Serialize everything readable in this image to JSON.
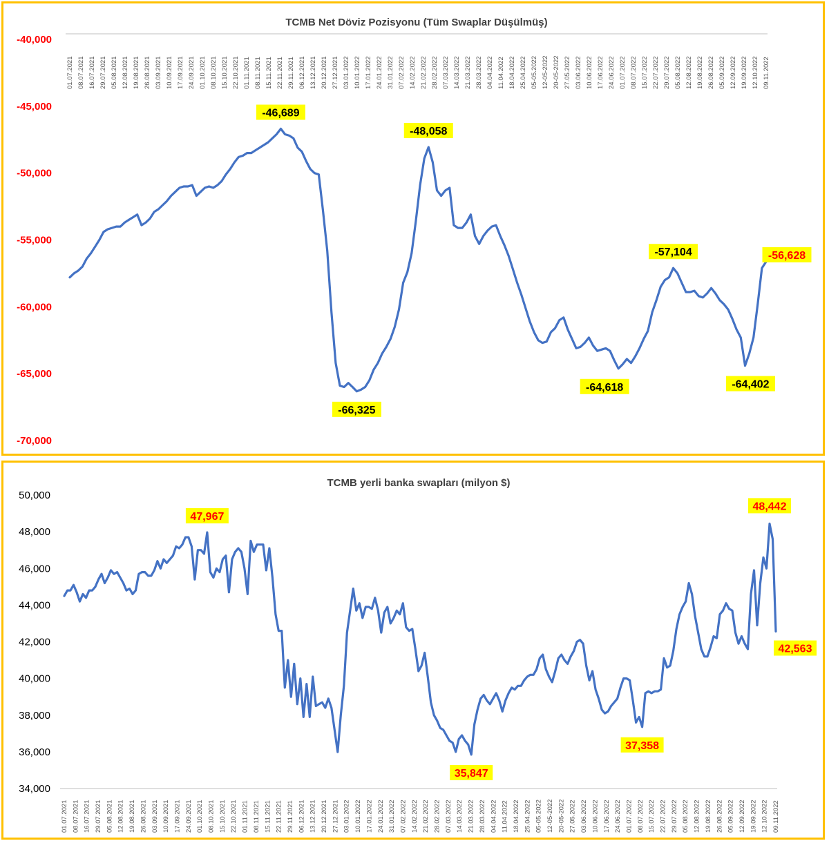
{
  "chart_data": [
    {
      "type": "line",
      "title": "TCMB Net Döviz Pozisyonu (Tüm Swaplar Düşülmüş)",
      "xlabel": "",
      "ylabel": "",
      "ylim": [
        -70000,
        -40000
      ],
      "y_axis_position": "top",
      "y_ticks": [
        -40000,
        -45000,
        -50000,
        -55000,
        -60000,
        -65000,
        -70000
      ],
      "y_tick_labels": [
        "-40,000",
        "-45,000",
        "-50,000",
        "-55,000",
        "-60,000",
        "-65,000",
        "-70,000"
      ],
      "y_tick_label_color": "#FF0000",
      "x_tick_labels": [
        "01.07.2021",
        "08.07.2021",
        "16.07.2021",
        "29.07.2021",
        "05.08.2021",
        "12.08.2021",
        "19.08.2021",
        "26.08.2021",
        "03.09.2021",
        "10.09.2021",
        "17.09.2021",
        "24.09.2021",
        "01.10.2021",
        "08.10.2021",
        "15.10.2021",
        "22.10.2021",
        "01.11.2021",
        "08.11.2021",
        "15.11.2021",
        "22.11.2021",
        "29.11.2021",
        "06.12.2021",
        "13.12.2021",
        "20.12.2021",
        "27.12.2021",
        "03.01.2022",
        "10.01.2022",
        "17.01.2022",
        "24.01.2022",
        "31.01.2022",
        "07.02.2022",
        "14.02.2022",
        "21.02.2022",
        "28.02.2022",
        "07.03.2022",
        "14.03.2022",
        "21.03.2022",
        "28.03.2022",
        "04.04.2022",
        "11.04.2022",
        "18.04.2022",
        "25.04.2022",
        "05-05.2022",
        "12-05-2022",
        "20-05-2022",
        "27.05.2022",
        "03.06.2022",
        "10.06.2022",
        "17.06.2022",
        "24.06.2022",
        "01.07.2022",
        "08.07.2022",
        "15.07.2022",
        "22.07.2022",
        "29.07.2022",
        "05.08.2022",
        "12.08.2022",
        "19.08.2022",
        "26.08.2022",
        "05.09.2022",
        "12.09.2022",
        "19.09.2022",
        "12.10.2022",
        "09.11.2022"
      ],
      "line_color": "#4472C4",
      "series": [
        {
          "values": [
            -57800,
            -57500,
            -57300,
            -57000,
            -56400,
            -56000,
            -55500,
            -55000,
            -54400,
            -54200,
            -54100,
            -54000,
            -54000,
            -53700,
            -53500,
            -53300,
            -53100,
            -53900,
            -53700,
            -53400,
            -52900,
            -52700,
            -52400,
            -52100,
            -51700,
            -51400,
            -51100,
            -51000,
            -51000,
            -50900,
            -51700,
            -51400,
            -51100,
            -51000,
            -51100,
            -50900,
            -50600,
            -50100,
            -49700,
            -49200,
            -48800,
            -48700,
            -48500,
            -48500,
            -48300,
            -48100,
            -47900,
            -47700,
            -47400,
            -47100,
            -46689,
            -47100,
            -47200,
            -47400,
            -48100,
            -48400,
            -49100,
            -49700,
            -50000,
            -50100,
            -52800,
            -55800,
            -60400,
            -64200,
            -65900,
            -66000,
            -65700,
            -66000,
            -66325,
            -66200,
            -66000,
            -65500,
            -64700,
            -64200,
            -63500,
            -63000,
            -62400,
            -61500,
            -60200,
            -58200,
            -57400,
            -56000,
            -53600,
            -50900,
            -48900,
            -48058,
            -49200,
            -51300,
            -51700,
            -51300,
            -51100,
            -53900,
            -54100,
            -54100,
            -53700,
            -53100,
            -54700,
            -55300,
            -54700,
            -54300,
            -54000,
            -53900,
            -54700,
            -55400,
            -56200,
            -57200,
            -58200,
            -59100,
            -60100,
            -61100,
            -61900,
            -62500,
            -62700,
            -62600,
            -61900,
            -61600,
            -61000,
            -60800,
            -61700,
            -62400,
            -63100,
            -63000,
            -62700,
            -62300,
            -62900,
            -63300,
            -63200,
            -63100,
            -63300,
            -64000,
            -64618,
            -64300,
            -63900,
            -64200,
            -63700,
            -63100,
            -62400,
            -61800,
            -60400,
            -59500,
            -58500,
            -58000,
            -57800,
            -57104,
            -57500,
            -58200,
            -58900,
            -58900,
            -58800,
            -59200,
            -59300,
            -59000,
            -58600,
            -59000,
            -59500,
            -59800,
            -60200,
            -60900,
            -61700,
            -62300,
            -64402,
            -63500,
            -62300,
            -59800,
            -57100,
            -56628
          ]
        }
      ],
      "annotations": [
        {
          "text": "-46,689",
          "x": "05.11.2021",
          "y": -46689
        },
        {
          "text": "-48,058",
          "x": "17.02.2022",
          "y": -48058
        },
        {
          "text": "-66,325",
          "x": "30.12.2021",
          "y": -66325
        },
        {
          "text": "-64,618",
          "x": "01.07.2022",
          "y": -64618
        },
        {
          "text": "-57,104",
          "x": "15.08.2022",
          "y": -57104
        },
        {
          "text": "-64,402",
          "x": "19.10.2022",
          "y": -64402
        },
        {
          "text": "-56,628",
          "x": "09.11.2022",
          "y": -56628
        }
      ],
      "annotation_style": {
        "background": "#FFFF00",
        "color": "#000000",
        "highlight_color": "#FF0000"
      },
      "grid": false
    },
    {
      "type": "line",
      "title": "TCMB yerli banka swapları (milyon $)",
      "xlabel": "",
      "ylabel": "",
      "ylim": [
        34000,
        50000
      ],
      "y_axis_position": "bottom",
      "y_ticks": [
        34000,
        36000,
        38000,
        40000,
        42000,
        44000,
        46000,
        48000,
        50000
      ],
      "y_tick_labels": [
        "34,000",
        "36,000",
        "38,000",
        "40,000",
        "42,000",
        "44,000",
        "46,000",
        "48,000",
        "50,000"
      ],
      "y_tick_label_color": "#000000",
      "x_tick_labels": [
        "01.07.2021",
        "08.07.2021",
        "16.07.2021",
        "29.07.2021",
        "05.08.2021",
        "12.08.2021",
        "19.08.2021",
        "26.08.2021",
        "03.09.2021",
        "10.09.2021",
        "17.09.2021",
        "24.09.2021",
        "01.10.2021",
        "08.10.2021",
        "15.10.2021",
        "22.10.2021",
        "01.11.2021",
        "08.11.2021",
        "15.11.2021",
        "22.11.2021",
        "29.11.2021",
        "06.12.2021",
        "13.12.2021",
        "20.12.2021",
        "27.12.2021",
        "03.01.2022",
        "10.01.2022",
        "17.01.2022",
        "24.01.2022",
        "31.01.2022",
        "07.02.2022",
        "14.02.2022",
        "21.02.2022",
        "28.02.2022",
        "07.03.2022",
        "14.03.2022",
        "21.03.2022",
        "28.03.2022",
        "04.04.2022",
        "11.04.2022",
        "18.04.2022",
        "25.04.2022",
        "05-05.2022",
        "12-05-2022",
        "20-05-2022",
        "27.05.2022",
        "03.06.2022",
        "10.06.2022",
        "17.06.2022",
        "24.06.2022",
        "01.07.2022",
        "08.07.2022",
        "15.07.2022",
        "22.07.2022",
        "29.07.2022",
        "05.08.2022",
        "12.08.2022",
        "19.08.2022",
        "26.08.2022",
        "05.09.2022",
        "12.09.2022",
        "19.09.2022",
        "12.10.2022",
        "09.11.2022"
      ],
      "line_color": "#4472C4",
      "series": [
        {
          "values": [
            44500,
            44800,
            44800,
            45100,
            44700,
            44200,
            44600,
            44400,
            44800,
            44800,
            45000,
            45400,
            45700,
            45200,
            45500,
            45900,
            45700,
            45800,
            45500,
            45200,
            44800,
            44900,
            44600,
            44800,
            45700,
            45800,
            45800,
            45600,
            45600,
            45900,
            46400,
            46000,
            46500,
            46300,
            46500,
            46700,
            47200,
            47100,
            47300,
            47700,
            47700,
            47200,
            45400,
            47000,
            47000,
            46800,
            47967,
            45800,
            45500,
            46000,
            45800,
            46500,
            46700,
            44700,
            46500,
            46900,
            47100,
            46900,
            46000,
            44600,
            47500,
            46900,
            47300,
            47300,
            47300,
            45900,
            47100,
            45500,
            43500,
            42600,
            42600,
            39500,
            41000,
            39000,
            40800,
            38600,
            40000,
            37900,
            39700,
            37900,
            40100,
            38500,
            38600,
            38700,
            38400,
            38900,
            38400,
            37200,
            35990,
            38000,
            39600,
            42500,
            43700,
            44900,
            43700,
            44100,
            43300,
            43900,
            43900,
            43800,
            44400,
            43700,
            42500,
            43600,
            43900,
            43000,
            43300,
            43700,
            43500,
            44100,
            42800,
            42600,
            42700,
            41600,
            40400,
            40700,
            41400,
            40100,
            38700,
            38000,
            37700,
            37300,
            37200,
            36900,
            36600,
            36500,
            36000,
            36700,
            36900,
            36600,
            36400,
            35847,
            37500,
            38300,
            38900,
            39100,
            38800,
            38600,
            38900,
            39200,
            38800,
            38200,
            38800,
            39200,
            39500,
            39400,
            39600,
            39600,
            39900,
            40100,
            40200,
            40200,
            40500,
            41100,
            41300,
            40500,
            40100,
            39800,
            40400,
            41100,
            41300,
            41000,
            40800,
            41200,
            41500,
            42000,
            42100,
            41900,
            40700,
            39900,
            40400,
            39400,
            38900,
            38300,
            38100,
            38200,
            38500,
            38700,
            38900,
            39500,
            40000,
            40000,
            39900,
            38800,
            37600,
            37900,
            37358,
            39200,
            39300,
            39200,
            39300,
            39300,
            39400,
            41100,
            40600,
            40700,
            41500,
            42700,
            43500,
            43900,
            44200,
            45200,
            44600,
            43400,
            42500,
            41600,
            41200,
            41200,
            41700,
            42300,
            42200,
            43500,
            43700,
            44100,
            43800,
            43700,
            42500,
            41900,
            42300,
            41900,
            41600,
            44600,
            45900,
            42900,
            45200,
            46600,
            46000,
            48442,
            47600,
            42563
          ]
        }
      ],
      "annotations": [
        {
          "text": "47,967",
          "x": "27.09.2021",
          "y": 47967
        },
        {
          "text": "35,847",
          "x": "11.03.2022",
          "y": 35847
        },
        {
          "text": "37,358",
          "x": "11.07.2022",
          "y": 37358
        },
        {
          "text": "48,442",
          "x": "04.11.2022",
          "y": 48442
        },
        {
          "text": "42,563",
          "x": "09.11.2022",
          "y": 42563
        }
      ],
      "annotation_style": {
        "background": "#FFFF00",
        "color": "#FF0000"
      },
      "grid": false
    }
  ]
}
